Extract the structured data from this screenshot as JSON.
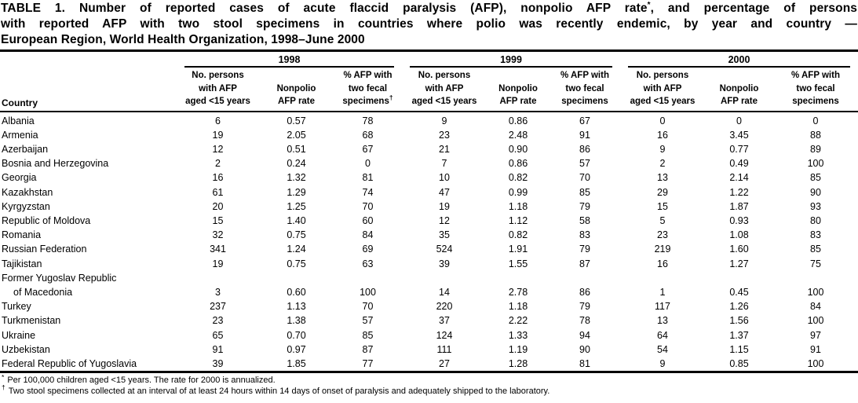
{
  "title": {
    "line1a": "TABLE 1. Number of reported cases of acute flaccid paralysis (AFP), nonpolio AFP rate",
    "line1_sup": "*",
    "line1b": ", and percentage of persons",
    "line2": "with reported AFP with two stool specimens in countries where polio was recently endemic, by year and country —",
    "line3": "European Region, World Health Organization, 1998–June 2000"
  },
  "table": {
    "country_header": "Country",
    "year_groups": [
      "1998",
      "1999",
      "2000"
    ],
    "col_headers": {
      "persons_l1": "No. persons",
      "persons_l2": "with AFP",
      "persons_l3": "aged <15 years",
      "rate_l1": "Nonpolio",
      "rate_l2": "AFP rate",
      "pct_l1": "% AFP with",
      "pct_l2": "two fecal",
      "pct_l3": "specimens",
      "pct_dagger": "†"
    },
    "rows": [
      {
        "country": "Albania",
        "values": [
          "6",
          "0.57",
          "78",
          "9",
          "0.86",
          "67",
          "0",
          "0",
          "0"
        ]
      },
      {
        "country": "Armenia",
        "values": [
          "19",
          "2.05",
          "68",
          "23",
          "2.48",
          "91",
          "16",
          "3.45",
          "88"
        ]
      },
      {
        "country": "Azerbaijan",
        "values": [
          "12",
          "0.51",
          "67",
          "21",
          "0.90",
          "86",
          "9",
          "0.77",
          "89"
        ]
      },
      {
        "country": "Bosnia and Herzegovina",
        "values": [
          "2",
          "0.24",
          "0",
          "7",
          "0.86",
          "57",
          "2",
          "0.49",
          "100"
        ]
      },
      {
        "country": "Georgia",
        "values": [
          "16",
          "1.32",
          "81",
          "10",
          "0.82",
          "70",
          "13",
          "2.14",
          "85"
        ]
      },
      {
        "country": "Kazakhstan",
        "values": [
          "61",
          "1.29",
          "74",
          "47",
          "0.99",
          "85",
          "29",
          "1.22",
          "90"
        ]
      },
      {
        "country": "Kyrgyzstan",
        "values": [
          "20",
          "1.25",
          "70",
          "19",
          "1.18",
          "79",
          "15",
          "1.87",
          "93"
        ]
      },
      {
        "country": "Republic of Moldova",
        "values": [
          "15",
          "1.40",
          "60",
          "12",
          "1.12",
          "58",
          "5",
          "0.93",
          "80"
        ]
      },
      {
        "country": "Romania",
        "values": [
          "32",
          "0.75",
          "84",
          "35",
          "0.82",
          "83",
          "23",
          "1.08",
          "83"
        ]
      },
      {
        "country": "Russian Federation",
        "values": [
          "341",
          "1.24",
          "69",
          "524",
          "1.91",
          "79",
          "219",
          "1.60",
          "85"
        ]
      },
      {
        "country": "Tajikistan",
        "values": [
          "19",
          "0.75",
          "63",
          "39",
          "1.55",
          "87",
          "16",
          "1.27",
          "75"
        ]
      },
      {
        "country": "Former Yugoslav Republic",
        "country_line2": "of Macedonia",
        "values": [
          "3",
          "0.60",
          "100",
          "14",
          "2.78",
          "86",
          "1",
          "0.45",
          "100"
        ]
      },
      {
        "country": "Turkey",
        "values": [
          "237",
          "1.13",
          "70",
          "220",
          "1.18",
          "79",
          "117",
          "1.26",
          "84"
        ]
      },
      {
        "country": "Turkmenistan",
        "values": [
          "23",
          "1.38",
          "57",
          "37",
          "2.22",
          "78",
          "13",
          "1.56",
          "100"
        ]
      },
      {
        "country": "Ukraine",
        "values": [
          "65",
          "0.70",
          "85",
          "124",
          "1.33",
          "94",
          "64",
          "1.37",
          "97"
        ]
      },
      {
        "country": "Uzbekistan",
        "values": [
          "91",
          "0.97",
          "87",
          "111",
          "1.19",
          "90",
          "54",
          "1.15",
          "91"
        ]
      },
      {
        "country": "Federal Republic of Yugoslavia",
        "values": [
          "39",
          "1.85",
          "77",
          "27",
          "1.28",
          "81",
          "9",
          "0.85",
          "100"
        ]
      }
    ]
  },
  "footnotes": [
    {
      "marker": "*",
      "text": "Per 100,000 children aged <15 years. The rate for 2000 is annualized."
    },
    {
      "marker": "†",
      "text": "Two stool specimens collected at an interval of at least 24 hours within 14 days of onset of paralysis and adequately shipped to the laboratory."
    }
  ]
}
